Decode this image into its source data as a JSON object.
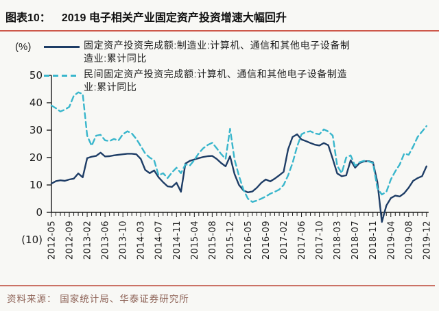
{
  "header": {
    "label": "图表10：",
    "title": "2019 电子相关产业固定资产投资增速大幅回升"
  },
  "legend": {
    "unit": "(%)",
    "entries": [
      {
        "name": "fixed-asset-investment",
        "label": "固定资产投资完成额:制造业:计算机、通信和其他电子设备制造业:累计同比",
        "color": "#1e3d66",
        "style": "solid"
      },
      {
        "name": "private-fixed-asset-investment",
        "label": "民间固定资产投资完成额:计算机、通信和其他电子设备制造业:累计同比",
        "color": "#39b6cc",
        "style": "dashed"
      }
    ]
  },
  "chart_data": {
    "type": "line",
    "title": "2019 电子相关产业固定资产投资增速大幅回升",
    "ylabel": "(%)",
    "ylim": [
      -10,
      50
    ],
    "grid": false,
    "legend_position": "top",
    "x_tick_every": 4,
    "y_ticks": [
      {
        "v": 50,
        "label": "50"
      },
      {
        "v": 40,
        "label": "40"
      },
      {
        "v": 30,
        "label": "30"
      },
      {
        "v": 20,
        "label": "20"
      },
      {
        "v": 10,
        "label": "10"
      },
      {
        "v": 0,
        "label": "0"
      },
      {
        "v": -10,
        "label": "(10)"
      }
    ],
    "x": [
      "2012-05",
      "2012-06",
      "2012-07",
      "2012-08",
      "2012-09",
      "2012-10",
      "2012-11",
      "2012-12",
      "2013-02",
      "2013-03",
      "2013-04",
      "2013-05",
      "2013-06",
      "2013-07",
      "2013-08",
      "2013-09",
      "2013-10",
      "2013-11",
      "2013-12",
      "2014-02",
      "2014-03",
      "2014-04",
      "2014-05",
      "2014-06",
      "2014-07",
      "2014-08",
      "2014-09",
      "2014-10",
      "2014-11",
      "2014-12",
      "2015-02",
      "2015-03",
      "2015-04",
      "2015-05",
      "2015-06",
      "2015-07",
      "2015-08",
      "2015-09",
      "2015-10",
      "2015-11",
      "2015-12",
      "2016-02",
      "2016-03",
      "2016-04",
      "2016-05",
      "2016-06",
      "2016-07",
      "2016-08",
      "2016-09",
      "2016-10",
      "2016-11",
      "2016-12",
      "2017-02",
      "2017-03",
      "2017-04",
      "2017-05",
      "2017-06",
      "2017-07",
      "2017-08",
      "2017-09",
      "2017-10",
      "2017-11",
      "2017-12",
      "2018-02",
      "2018-03",
      "2018-04",
      "2018-05",
      "2018-06",
      "2018-07",
      "2018-08",
      "2018-09",
      "2018-10",
      "2018-11",
      "2018-12",
      "2019-02",
      "2019-03",
      "2019-04",
      "2019-05",
      "2019-06",
      "2019-07",
      "2019-08",
      "2019-09",
      "2019-10",
      "2019-11",
      "2019-12"
    ],
    "series": [
      {
        "name": "fixed-asset-investment",
        "label": "固定资产投资完成额:制造业:计算机、通信和其他电子设备制造业:累计同比",
        "color": "#1e3d66",
        "dash": false,
        "values": [
          10.5,
          11.4,
          11.7,
          11.5,
          12.0,
          12.3,
          14.2,
          12.8,
          19.8,
          20.3,
          20.6,
          21.8,
          20.4,
          20.5,
          20.8,
          21.0,
          21.2,
          21.4,
          21.4,
          21.2,
          19.5,
          15.5,
          14.3,
          15.3,
          12.8,
          11.0,
          9.5,
          9.3,
          10.8,
          7.5,
          17.8,
          18.8,
          19.3,
          19.8,
          20.2,
          20.5,
          20.6,
          19.5,
          18.0,
          16.8,
          20.5,
          14.0,
          10.0,
          8.0,
          7.3,
          7.6,
          9.0,
          10.8,
          12.0,
          11.3,
          12.3,
          13.5,
          14.8,
          23.0,
          27.5,
          28.5,
          26.6,
          26.0,
          25.3,
          24.7,
          24.4,
          25.3,
          24.5,
          19.5,
          14.2,
          13.2,
          13.5,
          19.0,
          16.3,
          18.0,
          18.6,
          18.7,
          18.3,
          11.0,
          -3.5,
          2.5,
          5.2,
          6.1,
          5.8,
          7.0,
          9.0,
          11.5,
          12.5,
          13.2,
          16.8
        ]
      },
      {
        "name": "private-fixed-asset-investment",
        "label": "民间固定资产投资完成额:计算机、通信和其他电子设备制造业:累计同比",
        "color": "#39b6cc",
        "dash": true,
        "values": [
          39.0,
          38.0,
          36.8,
          37.5,
          38.5,
          42.5,
          43.8,
          43.2,
          28.0,
          24.3,
          28.0,
          28.3,
          26.3,
          26.0,
          26.8,
          26.2,
          28.5,
          29.6,
          28.8,
          26.8,
          24.2,
          21.5,
          20.0,
          19.0,
          13.5,
          14.3,
          12.5,
          14.6,
          16.3,
          14.3,
          17.5,
          17.1,
          19.1,
          21.6,
          23.4,
          24.6,
          25.4,
          23.4,
          21.3,
          19.5,
          30.5,
          19.3,
          13.3,
          8.3,
          5.0,
          3.8,
          4.3,
          5.0,
          5.8,
          6.8,
          7.5,
          8.3,
          10.0,
          13.5,
          18.0,
          24.0,
          28.5,
          29.3,
          29.6,
          28.8,
          28.5,
          30.3,
          29.5,
          28.0,
          17.0,
          14.3,
          20.0,
          20.8,
          17.0,
          18.3,
          18.8,
          18.6,
          18.0,
          8.8,
          6.5,
          7.5,
          12.0,
          15.0,
          17.5,
          21.5,
          21.0,
          24.0,
          27.5,
          29.5,
          31.5
        ]
      }
    ]
  },
  "footer": {
    "source": "资料来源： 国家统计局、华泰证券研究所"
  }
}
